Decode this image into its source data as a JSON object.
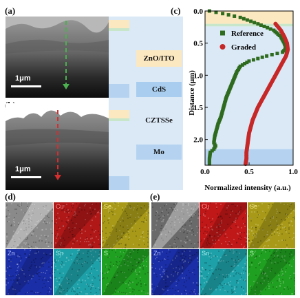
{
  "panels": {
    "a": "(a)",
    "b": "(b)",
    "c": "(c)",
    "d": "(d)",
    "e": "(e)"
  },
  "sem": {
    "scale_label_a": "1μm",
    "scale_label_b": "1μm",
    "arrow_color_a": "#4caf50",
    "arrow_color_b": "#d32f2f"
  },
  "layers": [
    {
      "name": "ZnO/ITO",
      "color": "#fbe8c0"
    },
    {
      "name": "CdS",
      "color": "#a9cdee"
    },
    {
      "name": "CZTSSe",
      "color": "#dbe9f7"
    },
    {
      "name": "Mo",
      "color": "#b5d3f0"
    }
  ],
  "chart_data": {
    "type": "scatter",
    "xlabel": "Normalized intensity (a.u.)",
    "ylabel": "Distance (μm)",
    "xlim": [
      0.0,
      1.0
    ],
    "ylim": [
      0.0,
      2.4
    ],
    "y_inverted": true,
    "xticks": [
      0.0,
      0.5,
      1.0
    ],
    "yticks": [
      0.0,
      0.5,
      1.0,
      1.5,
      2.0
    ],
    "xtick_labels": [
      "0.0",
      "0.5",
      "1.0"
    ],
    "ytick_labels": [
      "0.0",
      "0.5",
      "1.0",
      "1.5",
      "2.0"
    ],
    "legend_position": "top-right",
    "bands": [
      {
        "from": 0.0,
        "to": 0.2,
        "color": "#fbe8c0"
      },
      {
        "from": 0.2,
        "to": 0.24,
        "color": "#c8e6c9"
      },
      {
        "from": 0.24,
        "to": 2.15,
        "color": "#dbe9f7"
      },
      {
        "from": 2.15,
        "to": 2.4,
        "color": "#b5d3f0"
      }
    ],
    "series": [
      {
        "name": "Reference",
        "color": "#2e6b1e",
        "marker": "square",
        "points": [
          [
            0.05,
            0.0
          ],
          [
            0.2,
            0.04
          ],
          [
            0.4,
            0.1
          ],
          [
            0.6,
            0.2
          ],
          [
            0.78,
            0.3
          ],
          [
            0.86,
            0.4
          ],
          [
            0.9,
            0.5
          ],
          [
            0.92,
            0.58
          ],
          [
            0.88,
            0.64
          ],
          [
            0.7,
            0.7
          ],
          [
            0.5,
            0.78
          ],
          [
            0.4,
            0.86
          ],
          [
            0.36,
            0.95
          ],
          [
            0.33,
            1.05
          ],
          [
            0.3,
            1.15
          ],
          [
            0.27,
            1.25
          ],
          [
            0.24,
            1.35
          ],
          [
            0.22,
            1.45
          ],
          [
            0.2,
            1.55
          ],
          [
            0.18,
            1.65
          ],
          [
            0.15,
            1.75
          ],
          [
            0.13,
            1.85
          ],
          [
            0.11,
            1.95
          ],
          [
            0.1,
            2.05
          ],
          [
            0.12,
            2.1
          ],
          [
            0.1,
            2.15
          ],
          [
            0.06,
            2.2
          ],
          [
            0.05,
            2.3
          ],
          [
            0.05,
            2.38
          ]
        ]
      },
      {
        "name": "Graded",
        "color": "#c62828",
        "marker": "circle",
        "points": [
          [
            0.8,
            0.2
          ],
          [
            0.86,
            0.3
          ],
          [
            0.9,
            0.4
          ],
          [
            0.93,
            0.5
          ],
          [
            0.94,
            0.6
          ],
          [
            0.92,
            0.7
          ],
          [
            0.88,
            0.8
          ],
          [
            0.84,
            0.9
          ],
          [
            0.8,
            1.0
          ],
          [
            0.76,
            1.1
          ],
          [
            0.72,
            1.2
          ],
          [
            0.68,
            1.3
          ],
          [
            0.64,
            1.4
          ],
          [
            0.6,
            1.5
          ],
          [
            0.57,
            1.6
          ],
          [
            0.54,
            1.7
          ],
          [
            0.52,
            1.8
          ],
          [
            0.5,
            1.9
          ],
          [
            0.49,
            2.0
          ],
          [
            0.48,
            2.1
          ],
          [
            0.47,
            2.2
          ],
          [
            0.47,
            2.3
          ],
          [
            0.46,
            2.38
          ]
        ]
      }
    ]
  },
  "eds_maps": {
    "d": [
      {
        "label": "",
        "color": "#8a8a8a"
      },
      {
        "label": "Cu",
        "color": "#b01818"
      },
      {
        "label": "Se",
        "color": "#a89a18"
      },
      {
        "label": "Zn",
        "color": "#1a2ea8"
      },
      {
        "label": "Sn",
        "color": "#1ea0a8"
      },
      {
        "label": "S",
        "color": "#20a020"
      }
    ],
    "e": [
      {
        "label": "",
        "color": "#6a6a6a"
      },
      {
        "label": "Cu",
        "color": "#c01818"
      },
      {
        "label": "Se",
        "color": "#a89a18"
      },
      {
        "label": "Zn",
        "color": "#1a2ea8"
      },
      {
        "label": "Sn",
        "color": "#1ea0a8"
      },
      {
        "label": "S",
        "color": "#20a020"
      }
    ],
    "label_colors": {
      "Cu": "#ff8a8a",
      "Se": "#ffee88",
      "Zn": "#bbc6ff",
      "Sn": "#aaf2f2",
      "S": "#b6ffb6"
    }
  }
}
